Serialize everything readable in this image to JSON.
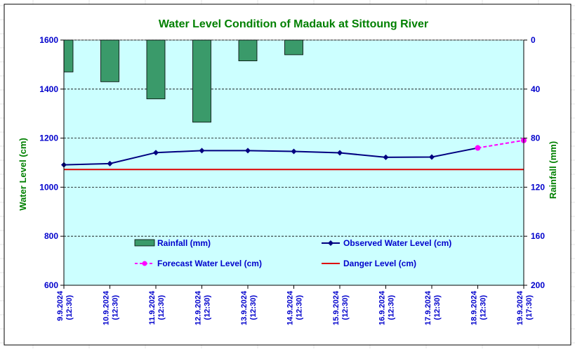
{
  "chart_data": {
    "type": "bar+line",
    "title": "Water Level Condition of Madauk at Sittoung River",
    "ylabel_left": "Water Level (cm)",
    "ylabel_right": "Rainfall (mm)",
    "ylim_left": [
      600,
      1600
    ],
    "yticks_left": [
      600,
      800,
      1000,
      1200,
      1400,
      1600
    ],
    "ylim_right": [
      200,
      0
    ],
    "yticks_right": [
      0,
      40,
      80,
      120,
      160,
      200
    ],
    "right_axis_inverted": true,
    "grid": true,
    "categories": [
      "9.9.2024 (12:30)",
      "10.9.2024 (12:30)",
      "11.9.2024 (12:30)",
      "12.9.2024 (12:30)",
      "13.9.2024 (12:30)",
      "14.9.2024 (12:30)",
      "15.9.2024 (12:30)",
      "16.9.2024 (12:30)",
      "17.9.2024 (12:30)",
      "18.9.2024 (12:30)",
      "19.9.2024 (17:30)"
    ],
    "category_dates": [
      "9.9.2024",
      "10.9.2024",
      "11.9.2024",
      "12.9.2024",
      "13.9.2024",
      "14.9.2024",
      "15.9.2024",
      "16.9.2024",
      "17.9.2024",
      "18.9.2024",
      "19.9.2024"
    ],
    "category_times": [
      "(12:30)",
      "(12:30)",
      "(12:30)",
      "(12:30)",
      "(12:30)",
      "(12:30)",
      "(12:30)",
      "(12:30)",
      "(12:30)",
      "(12:30)",
      "(17:30)"
    ],
    "series": [
      {
        "name": "Rainfall (mm)",
        "type": "bar",
        "axis": "right",
        "color": "#3a9a6a",
        "values": [
          26,
          34,
          48,
          67,
          17,
          12,
          null,
          null,
          null,
          null,
          null
        ]
      },
      {
        "name": "Observed Water Level (cm)",
        "type": "line",
        "axis": "left",
        "color": "#000080",
        "values": [
          1091,
          1096,
          1141,
          1149,
          1149,
          1146,
          1140,
          1122,
          1123,
          1160,
          null
        ]
      },
      {
        "name": "Forecast Water Level (cm)",
        "type": "line-dashed",
        "axis": "left",
        "color": "#ff00ff",
        "values": [
          null,
          null,
          null,
          null,
          null,
          null,
          null,
          null,
          null,
          1160,
          1191
        ]
      },
      {
        "name": "Danger Level (cm)",
        "type": "hline",
        "axis": "left",
        "color": "#dd0000",
        "value": 1072
      }
    ],
    "legend": [
      {
        "label": "Rainfall (mm)",
        "marker": "bar"
      },
      {
        "label": "Observed Water Level (cm)",
        "marker": "line-diamond"
      },
      {
        "label": "Forecast Water Level (cm)",
        "marker": "dashed-dot"
      },
      {
        "label": "Danger Level (cm)",
        "marker": "line"
      }
    ],
    "legend_placement": "inside-bottom",
    "colors": {
      "plot_background": "#ccffff",
      "title": "#008000",
      "axis_text": "#0000cc",
      "axis_title": "#008000"
    }
  }
}
